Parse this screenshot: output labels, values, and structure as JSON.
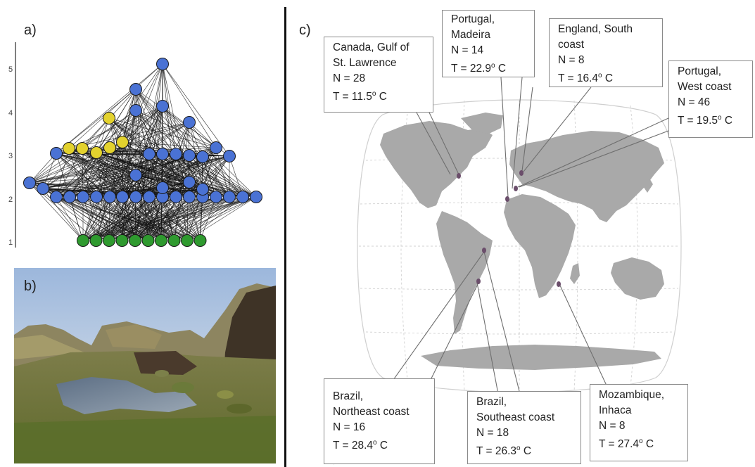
{
  "panel_labels": {
    "a": "a)",
    "b": "b)",
    "c": "c)"
  },
  "food_web": {
    "y_ticks": [
      "1",
      "2",
      "3",
      "4",
      "5"
    ],
    "colors": {
      "blue": "#4a72d4",
      "yellow": "#e3d22e",
      "green": "#2f9a2f",
      "axis": "#555555",
      "edge": "#111111"
    }
  },
  "sites": [
    {
      "id": "canada",
      "place": [
        "Canada, Gulf of",
        "St. Lawrence"
      ],
      "n": "N = 28",
      "t_prefix": "T = 11.5",
      "t_sup": "o",
      "t_suffix": " C"
    },
    {
      "id": "madeira",
      "place": [
        "Portugal,",
        "Madeira"
      ],
      "n": "N = 14",
      "t_prefix": "T = 22.9",
      "t_sup": "o",
      "t_suffix": " C"
    },
    {
      "id": "england",
      "place": [
        "England, South",
        "coast"
      ],
      "n": "N = 8",
      "t_prefix": "T = 16.4",
      "t_sup": "o",
      "t_suffix": " C"
    },
    {
      "id": "portugal-west",
      "place": [
        "Portugal,",
        "West coast"
      ],
      "n": "N = 46",
      "t_prefix": "T = 19.5",
      "t_sup": "o",
      "t_suffix": " C"
    },
    {
      "id": "brazil-ne",
      "place": [
        "Brazil,",
        "Northeast coast"
      ],
      "n": "N = 16",
      "t_prefix": "T = 28.4",
      "t_sup": "o",
      "t_suffix": " C"
    },
    {
      "id": "brazil-se",
      "place": [
        "Brazil,",
        "Southeast coast"
      ],
      "n": "N = 18",
      "t_prefix": "T = 26.3",
      "t_sup": "o",
      "t_suffix": " C"
    },
    {
      "id": "mozambique",
      "place": [
        "Mozambique,",
        "Inhaca"
      ],
      "n": "N = 8",
      "t_prefix": "T = 27.4",
      "t_sup": "o",
      "t_suffix": " C"
    }
  ],
  "map_colors": {
    "land": "#a9a9a9",
    "site_marker": "#6b4e6b",
    "leader": "#6f6f6f",
    "grid": "#c8c8c8"
  }
}
